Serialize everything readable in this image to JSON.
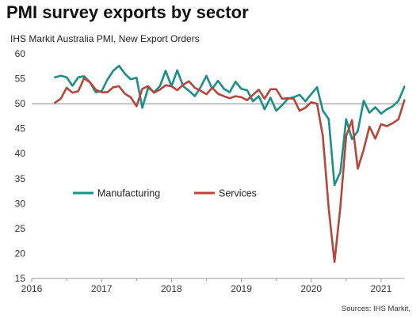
{
  "page": {
    "title": "PMI survey exports by sector",
    "subtitle": "IHS Markit Australia PMI, New Export Orders",
    "source": "Sources: IHS Markit,"
  },
  "colors": {
    "manufacturing": "#1b8f86",
    "services": "#b5463b",
    "axis": "#999999",
    "reference": "#888888"
  },
  "chart_data": {
    "type": "line",
    "title": "PMI survey exports by sector",
    "subtitle": "IHS Markit Australia PMI, New Export Orders",
    "ylim": [
      15,
      60
    ],
    "yticks": [
      15,
      20,
      25,
      30,
      35,
      40,
      45,
      50,
      55,
      60
    ],
    "xlim": [
      2016,
      2021.33
    ],
    "xticks": [
      2016,
      2017,
      2018,
      2019,
      2020,
      2021
    ],
    "reference_line": 50,
    "grid": false,
    "legend_position": "center-left",
    "x_start": "2016-05",
    "x_step": "monthly",
    "series": [
      {
        "name": "Manufacturing",
        "color": "#1b8f86",
        "values": [
          55.3,
          55.6,
          55.3,
          53.6,
          55.3,
          55.5,
          54.3,
          52.3,
          52.5,
          54.8,
          56.6,
          57.6,
          56.0,
          54.9,
          55.2,
          49.2,
          53.2,
          52.3,
          53.5,
          56.6,
          53.5,
          56.7,
          53.5,
          52.6,
          51.5,
          53.3,
          55.6,
          53.0,
          54.6,
          53.0,
          52.3,
          54.4,
          53.0,
          52.7,
          50.5,
          51.5,
          48.9,
          51.2,
          48.6,
          49.7,
          51.0,
          51.3,
          51.8,
          50.5,
          51.9,
          53.3,
          48.6,
          46.9,
          33.7,
          36.3,
          46.9,
          42.9,
          44.5,
          50.6,
          48.2,
          49.3,
          48.0,
          48.9,
          49.5,
          50.6,
          53.4
        ]
      },
      {
        "name": "Services",
        "color": "#b5463b",
        "values": [
          50.2,
          51.0,
          53.2,
          52.2,
          52.5,
          55.1,
          54.3,
          52.8,
          52.3,
          52.3,
          53.3,
          53.5,
          52.0,
          51.3,
          49.5,
          53.0,
          53.5,
          52.2,
          52.8,
          53.7,
          53.5,
          52.7,
          53.8,
          54.5,
          53.2,
          52.6,
          51.9,
          53.2,
          52.0,
          51.5,
          51.1,
          51.5,
          51.3,
          50.7,
          51.8,
          52.8,
          51.0,
          52.9,
          52.9,
          51.0,
          51.1,
          51.0,
          48.6,
          49.2,
          50.3,
          50.0,
          43.5,
          29.0,
          18.3,
          29.3,
          43.5,
          46.7,
          37.0,
          40.8,
          45.4,
          43.0,
          45.9,
          45.5,
          46.1,
          46.9,
          50.7
        ]
      }
    ],
    "legend": [
      "Manufacturing",
      "Services"
    ]
  }
}
